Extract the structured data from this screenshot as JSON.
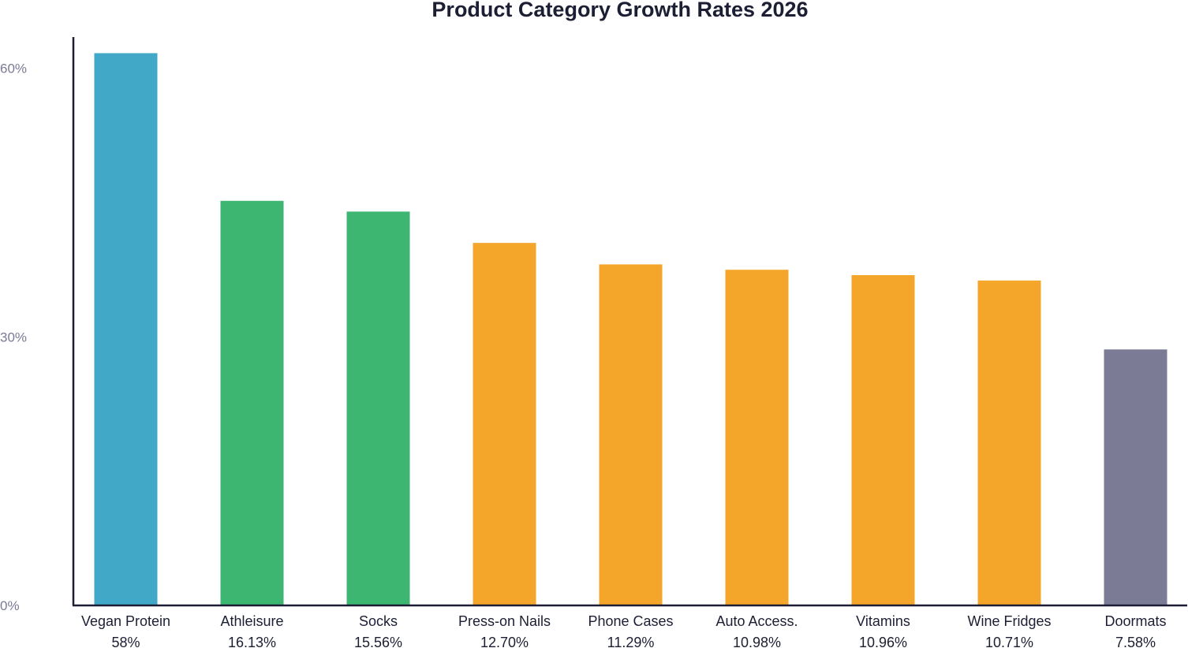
{
  "chart_data": {
    "type": "bar",
    "title": "Product Category Growth Rates 2026",
    "xlabel": "",
    "ylabel": "",
    "categories": [
      "Vegan Protein",
      "Athleisure",
      "Socks",
      "Press-on Nails",
      "Phone Cases",
      "Auto Access.",
      "Vitamins",
      "Wine Fridges",
      "Doormats"
    ],
    "value_labels": [
      "58%",
      "16.13%",
      "15.56%",
      "12.70%",
      "11.29%",
      "10.98%",
      "10.96%",
      "10.71%",
      "7.58%"
    ],
    "values": [
      61.7,
      45.2,
      44.0,
      40.5,
      38.1,
      37.5,
      36.9,
      36.3,
      28.6
    ],
    "ylim": [
      0,
      63.5
    ],
    "yticks": [
      0,
      30,
      60
    ],
    "ytick_labels": [
      "0%",
      "30%",
      "60%"
    ],
    "colors": [
      "#42a8c8",
      "#3cb671",
      "#3cb671",
      "#f3a62a",
      "#f3a62a",
      "#f3a62a",
      "#f3a62a",
      "#f3a62a",
      "#7b7b96"
    ],
    "grid": false,
    "legend": "none"
  }
}
